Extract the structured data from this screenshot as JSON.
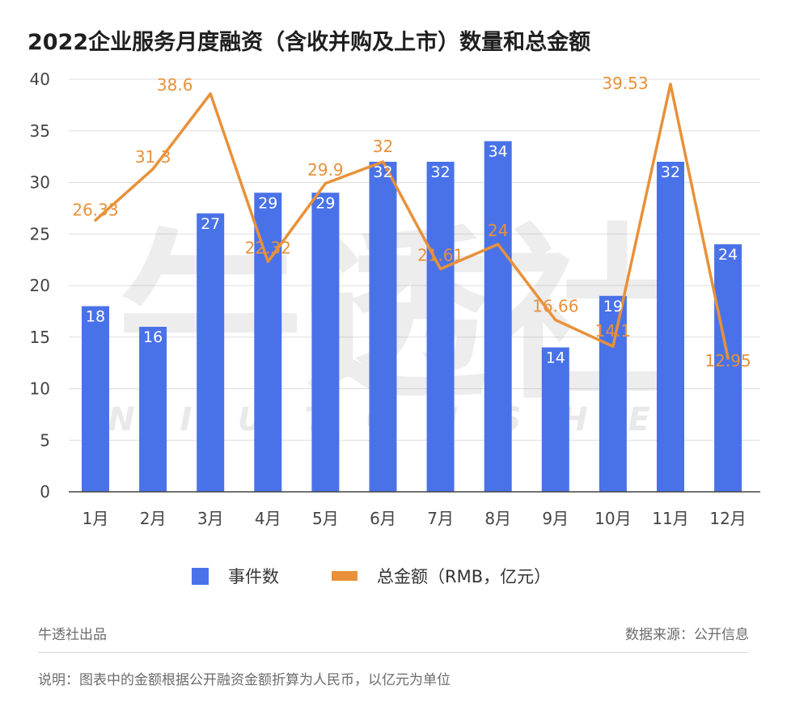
{
  "title": "2022企业服务月度融资（含收并购及上市）数量和总金额",
  "colors": {
    "bar": "#4a72e8",
    "line": "#e8913a",
    "grid": "#dddddd",
    "axis": "#444444",
    "bar_label": "#ffffff",
    "line_label": "#e8913a"
  },
  "chart_data": {
    "type": "bar",
    "title": "2022企业服务月度融资（含收并购及上市）数量和总金额",
    "xlabel": "",
    "ylabel": "",
    "categories": [
      "1月",
      "2月",
      "3月",
      "4月",
      "5月",
      "6月",
      "7月",
      "8月",
      "9月",
      "10月",
      "11月",
      "12月"
    ],
    "ylim": [
      0,
      40
    ],
    "yticks": [
      0,
      5,
      10,
      15,
      20,
      25,
      30,
      35,
      40
    ],
    "grid": true,
    "legend_position": "bottom",
    "series": [
      {
        "name": "事件数",
        "type": "bar",
        "values": [
          18,
          16,
          27,
          29,
          29,
          32,
          32,
          34,
          14,
          19,
          32,
          24
        ]
      },
      {
        "name": "总金额（RMB，亿元）",
        "type": "line",
        "values": [
          26.33,
          31.3,
          38.6,
          22.32,
          29.9,
          32,
          21.61,
          24,
          16.66,
          14.1,
          39.53,
          12.95
        ]
      }
    ]
  },
  "legend": {
    "bar_label": "事件数",
    "line_label": "总金额（RMB，亿元）"
  },
  "footer": {
    "left": "牛透社出品",
    "right": "数据来源：公开信息",
    "note": "说明：图表中的金额根据公开融资金额折算为人民币，以亿元为单位"
  },
  "watermark": {
    "logo_text": "牛透社",
    "letters": [
      "N",
      "I",
      "U",
      "T",
      "O",
      "U",
      "S",
      "H",
      "E"
    ]
  }
}
